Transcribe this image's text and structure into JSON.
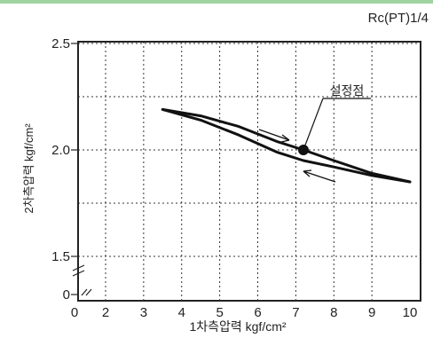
{
  "chart_data": {
    "type": "line",
    "header_text": "Rc(PT)1/4",
    "xlabel": "1차측압력 kgf/cm²",
    "ylabel": "2차측압력 kgf/cm²",
    "x_ticks": [
      "0",
      "2",
      "3",
      "4",
      "5",
      "6",
      "7",
      "8",
      "9",
      "10"
    ],
    "y_ticks": [
      "0",
      "1.5",
      "2.0",
      "2.5"
    ],
    "grid": true,
    "series": [
      {
        "values_upper": [
          [
            3.5,
            2.19
          ],
          [
            4.5,
            2.16
          ],
          [
            5.5,
            2.11
          ],
          [
            6.5,
            2.04
          ],
          [
            7.2,
            2.0
          ],
          [
            8.0,
            1.95
          ],
          [
            9.0,
            1.89
          ],
          [
            10.0,
            1.85
          ]
        ],
        "values_lower": [
          [
            3.5,
            2.19
          ],
          [
            4.5,
            2.14
          ],
          [
            5.5,
            2.07
          ],
          [
            6.5,
            1.99
          ],
          [
            7.2,
            1.95
          ],
          [
            8.0,
            1.92
          ],
          [
            9.0,
            1.88
          ],
          [
            10.0,
            1.85
          ]
        ]
      }
    ],
    "set_point": {
      "x": 7.2,
      "y": 2.0,
      "label": "설정점"
    }
  }
}
